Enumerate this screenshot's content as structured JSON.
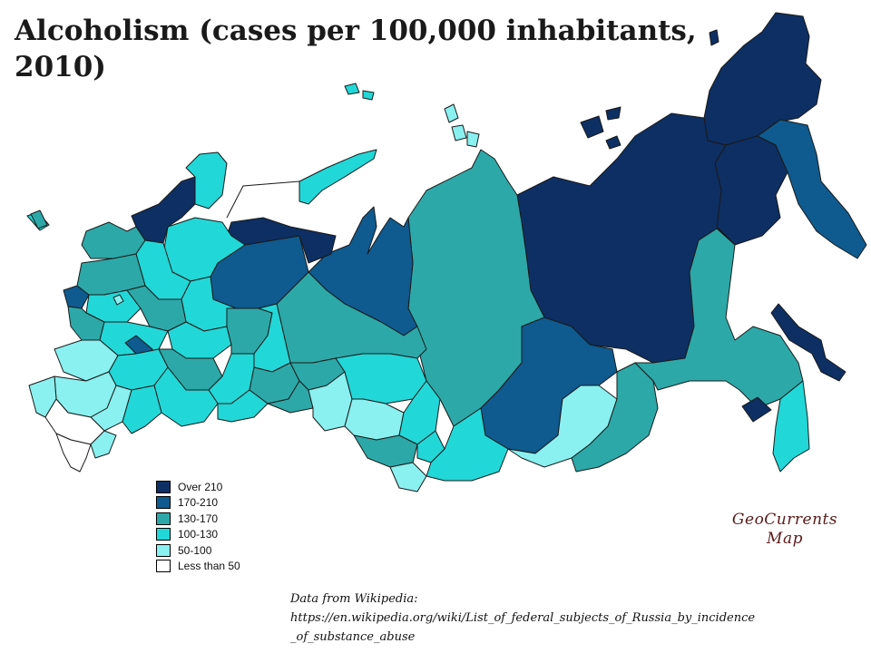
{
  "title_line1": "Alcoholism (cases per 100,000 inhabitants,",
  "title_line2": "2010)",
  "legend": [
    {
      "label": "Over 210",
      "color": "#0d2f63"
    },
    {
      "label": "170-210",
      "color": "#0f5a8e"
    },
    {
      "label": "130-170",
      "color": "#2da8a8"
    },
    {
      "label": "100-130",
      "color": "#22d7d7"
    },
    {
      "label": "50-100",
      "color": "#8af0f0"
    },
    {
      "label": "Less than 50",
      "color": "#ffffff"
    }
  ],
  "credit_line1": "GeoCurrents",
  "credit_line2": "Map",
  "source_line1": "Data from Wikipedia:",
  "source_line2": "https://en.wikipedia.org/wiki/List_of_federal_subjects_of_Russia_by_incidence",
  "source_line3": "_of_substance_abuse",
  "border_color": "#1a1a1a"
}
